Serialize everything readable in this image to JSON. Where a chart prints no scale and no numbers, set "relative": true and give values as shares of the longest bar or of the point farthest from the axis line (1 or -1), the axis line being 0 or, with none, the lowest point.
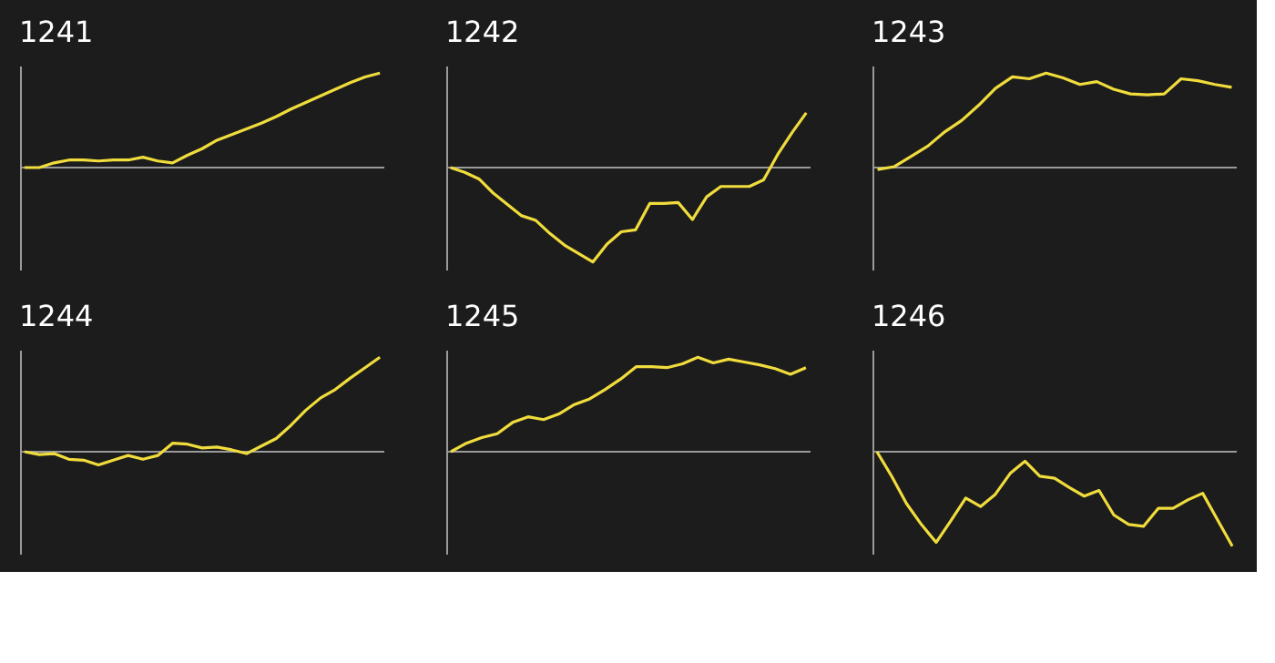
{
  "chart_data": [
    {
      "type": "line",
      "title": "1241",
      "relative": true,
      "categories": [
        null,
        null,
        null,
        null,
        null,
        null,
        null,
        null,
        null,
        null,
        null,
        null,
        null,
        null,
        null,
        null,
        null,
        null,
        null,
        null,
        null,
        null,
        null,
        null,
        null
      ],
      "series": [
        {
          "color": "#f0dc3c",
          "values": [
            0,
            0,
            0.05,
            0.08,
            0.08,
            0.07,
            0.08,
            0.08,
            0.11,
            0.07,
            0.05,
            0.13,
            0.2,
            0.29,
            0.35,
            0.41,
            0.47,
            0.54,
            0.62,
            0.69,
            0.76,
            0.83,
            0.9,
            0.96,
            1
          ]
        }
      ]
    },
    {
      "type": "line",
      "title": "1242",
      "relative": true,
      "categories": [
        null,
        null,
        null,
        null,
        null,
        null,
        null,
        null,
        null,
        null,
        null,
        null,
        null,
        null,
        null,
        null,
        null,
        null,
        null,
        null,
        null,
        null,
        null,
        null,
        null,
        null
      ],
      "series": [
        {
          "color": "#f0dc3c",
          "values": [
            0,
            -0.05,
            -0.12,
            -0.27,
            -0.39,
            -0.51,
            -0.56,
            -0.7,
            -0.82,
            -0.91,
            -1,
            -0.81,
            -0.68,
            -0.66,
            -0.38,
            -0.38,
            -0.37,
            -0.55,
            -0.31,
            -0.2,
            -0.2,
            -0.2,
            -0.13,
            0.14,
            0.37,
            0.58
          ]
        }
      ]
    },
    {
      "type": "line",
      "title": "1243",
      "relative": true,
      "categories": [
        null,
        null,
        null,
        null,
        null,
        null,
        null,
        null,
        null,
        null,
        null,
        null,
        null,
        null,
        null,
        null,
        null,
        null,
        null,
        null,
        null,
        null
      ],
      "series": [
        {
          "color": "#f0dc3c",
          "values": [
            -0.02,
            0.01,
            0.12,
            0.23,
            0.38,
            0.5,
            0.66,
            0.84,
            0.96,
            0.94,
            1,
            0.95,
            0.88,
            0.91,
            0.83,
            0.78,
            0.77,
            0.78,
            0.94,
            0.92,
            0.88,
            0.85
          ]
        }
      ]
    },
    {
      "type": "line",
      "title": "1244",
      "relative": true,
      "categories": [
        null,
        null,
        null,
        null,
        null,
        null,
        null,
        null,
        null,
        null,
        null,
        null,
        null,
        null,
        null,
        null,
        null,
        null,
        null,
        null,
        null,
        null,
        null,
        null,
        null
      ],
      "series": [
        {
          "color": "#f0dc3c",
          "values": [
            0,
            -0.03,
            -0.02,
            -0.08,
            -0.09,
            -0.14,
            -0.09,
            -0.04,
            -0.08,
            -0.04,
            0.09,
            0.08,
            0.04,
            0.05,
            0.02,
            -0.02,
            0.06,
            0.14,
            0.28,
            0.44,
            0.57,
            0.66,
            0.78,
            0.89,
            1
          ]
        }
      ]
    },
    {
      "type": "line",
      "title": "1245",
      "relative": true,
      "categories": [
        null,
        null,
        null,
        null,
        null,
        null,
        null,
        null,
        null,
        null,
        null,
        null,
        null,
        null,
        null,
        null,
        null,
        null,
        null,
        null,
        null,
        null,
        null,
        null
      ],
      "series": [
        {
          "color": "#f0dc3c",
          "values": [
            0,
            0.09,
            0.15,
            0.19,
            0.31,
            0.37,
            0.34,
            0.4,
            0.5,
            0.56,
            0.66,
            0.77,
            0.9,
            0.9,
            0.89,
            0.93,
            1,
            0.94,
            0.98,
            0.95,
            0.92,
            0.88,
            0.82,
            0.89
          ]
        }
      ]
    },
    {
      "type": "line",
      "title": "1246",
      "relative": true,
      "categories": [
        null,
        null,
        null,
        null,
        null,
        null,
        null,
        null,
        null,
        null,
        null,
        null,
        null,
        null,
        null,
        null,
        null,
        null,
        null,
        null,
        null,
        null,
        null,
        null,
        null
      ],
      "series": [
        {
          "color": "#f0dc3c",
          "values": [
            0,
            -0.26,
            -0.55,
            -0.77,
            -0.96,
            -0.73,
            -0.49,
            -0.58,
            -0.45,
            -0.23,
            -0.1,
            -0.26,
            -0.28,
            -0.38,
            -0.47,
            -0.41,
            -0.67,
            -0.77,
            -0.79,
            -0.6,
            -0.6,
            -0.51,
            -0.44,
            -0.72,
            -1
          ]
        }
      ]
    }
  ]
}
